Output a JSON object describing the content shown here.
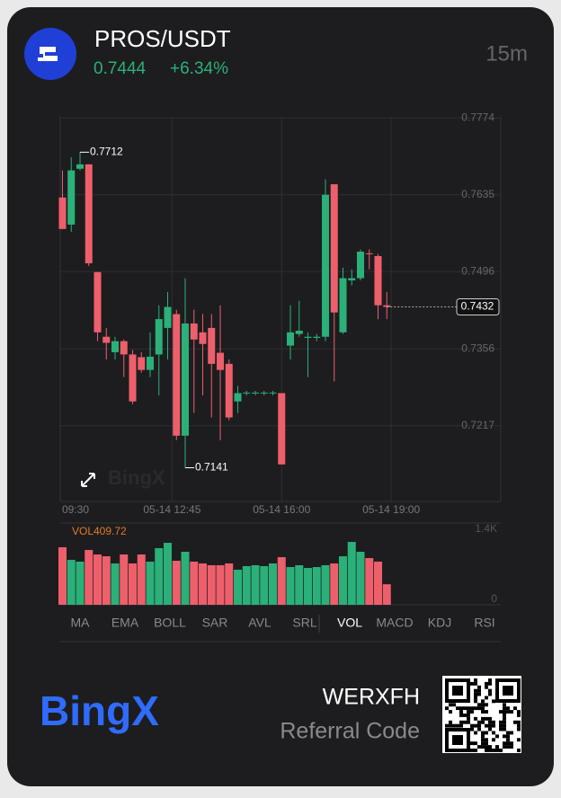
{
  "header": {
    "pair": "PROS/USDT",
    "price": "0.7444",
    "change": "+6.34%",
    "interval": "15m"
  },
  "chart_data": {
    "type": "candlestick",
    "up_color": "#2bb07a",
    "down_color": "#ee5f6c",
    "open": [
      0.763,
      0.7581,
      0.7682,
      0.769,
      0.7495,
      0.7378,
      0.735,
      0.737,
      0.7346,
      0.7341,
      0.7318,
      0.7346,
      0.7394,
      0.7419,
      0.7199,
      0.7402,
      0.7386,
      0.7394,
      0.7349,
      0.7329,
      0.7261,
      0.7276,
      0.7276,
      0.7276,
      0.7276,
      0.7276,
      0.7362,
      0.7383,
      0.7376,
      0.7376,
      0.7378,
      0.7654,
      0.7386,
      0.748,
      0.7484,
      0.7529,
      0.7524,
      0.7435
    ],
    "close": [
      0.7573,
      0.7679,
      0.769,
      0.7511,
      0.7386,
      0.7367,
      0.737,
      0.7346,
      0.7261,
      0.7318,
      0.7342,
      0.741,
      0.7432,
      0.7199,
      0.7402,
      0.7373,
      0.7365,
      0.7329,
      0.7318,
      0.7232,
      0.7276,
      0.7277,
      0.7277,
      0.7277,
      0.7277,
      0.7147,
      0.7386,
      0.7389,
      0.7378,
      0.7378,
      0.7635,
      0.7422,
      0.7484,
      0.7484,
      0.7532,
      0.7528,
      0.7435,
      0.7432
    ],
    "high": [
      0.7679,
      0.7703,
      0.7712,
      0.769,
      0.7495,
      0.7394,
      0.7378,
      0.7373,
      0.7354,
      0.735,
      0.7386,
      0.7435,
      0.7459,
      0.7427,
      0.7484,
      0.7427,
      0.7419,
      0.7419,
      0.7435,
      0.7337,
      0.7289,
      0.728,
      0.728,
      0.728,
      0.728,
      0.7276,
      0.7435,
      0.7443,
      0.7386,
      0.7383,
      0.7663,
      0.7654,
      0.7503,
      0.75,
      0.7536,
      0.7536,
      0.7528,
      0.7459
    ],
    "low": [
      0.7573,
      0.7568,
      0.7679,
      0.7506,
      0.737,
      0.7337,
      0.7337,
      0.7305,
      0.7256,
      0.7313,
      0.7305,
      0.7272,
      0.7337,
      0.7191,
      0.7141,
      0.724,
      0.7272,
      0.7232,
      0.7191,
      0.7227,
      0.724,
      0.7272,
      0.7272,
      0.7272,
      0.7272,
      0.7147,
      0.7337,
      0.7378,
      0.7305,
      0.737,
      0.737,
      0.7297,
      0.7383,
      0.7471,
      0.748,
      0.75,
      0.741,
      0.741
    ],
    "ylim": [
      0.708,
      0.7776
    ],
    "yticks": [
      0.7774,
      0.7635,
      0.7496,
      0.7356,
      0.7217
    ],
    "xticks": [
      {
        "value": 0,
        "label": "09:30"
      },
      {
        "value": 12.5,
        "label": "05-14 12:45"
      },
      {
        "value": 25,
        "label": "05-14 16:00"
      },
      {
        "value": 37.5,
        "label": "05-14 19:00"
      }
    ],
    "high_label": "0.7712",
    "low_label": "0.7141",
    "last_price": 0.7432,
    "volume": {
      "label": "VOL409.72",
      "values": [
        1149,
        897,
        862,
        1095,
        1005,
        969,
        826,
        1005,
        826,
        1005,
        862,
        1131,
        1238,
        879,
        1059,
        862,
        826,
        790,
        790,
        826,
        700,
        772,
        790,
        772,
        826,
        951,
        754,
        790,
        736,
        754,
        790,
        826,
        969,
        1256,
        1059,
        933,
        862,
        409.72
      ],
      "ylim": [
        0,
        1400
      ],
      "yticks": [
        {
          "value": 1400,
          "label": "1.4K"
        },
        0
      ]
    }
  },
  "indicators": [
    "MA",
    "EMA",
    "BOLL",
    "SAR",
    "AVL",
    "SRL",
    "VOL",
    "MACD",
    "KDJ",
    "RSI"
  ],
  "active_indicator": 6,
  "footer": {
    "brand": "BingX",
    "code": "WERXFH",
    "code_label": "Referral Code"
  }
}
